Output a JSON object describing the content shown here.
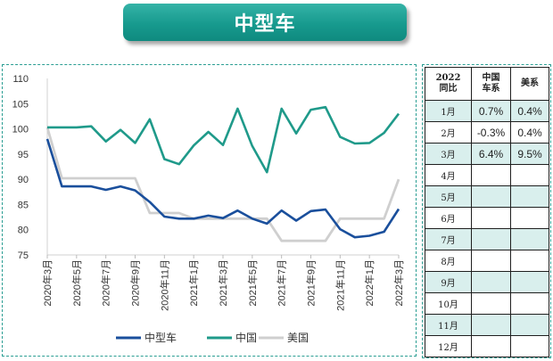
{
  "title": "中型车",
  "chart_data": {
    "type": "line",
    "ylim": [
      75,
      110
    ],
    "yticks": [
      75,
      80,
      85,
      90,
      95,
      100,
      105,
      110
    ],
    "x_tick_labels": [
      "2020年3月",
      "2020年5月",
      "2020年7月",
      "2020年9月",
      "2020年11月",
      "2021年1月",
      "2021年3月",
      "2021年5月",
      "2021年7月",
      "2021年9月",
      "2021年11月",
      "2022年1月",
      "2022年3月"
    ],
    "categories": [
      "2020-03",
      "2020-04",
      "2020-05",
      "2020-06",
      "2020-07",
      "2020-08",
      "2020-09",
      "2020-10",
      "2020-11",
      "2020-12",
      "2021-01",
      "2021-02",
      "2021-03",
      "2021-04",
      "2021-05",
      "2021-06",
      "2021-07",
      "2021-08",
      "2021-09",
      "2021-10",
      "2021-11",
      "2021-12",
      "2022-01",
      "2022-02",
      "2022-03"
    ],
    "series": [
      {
        "name": "中型车",
        "color": "#1a4f9c",
        "values": [
          98,
          88.6,
          88.6,
          88.6,
          87.9,
          88.6,
          87.8,
          85.5,
          82.6,
          82.2,
          82.2,
          82.8,
          82.3,
          83.8,
          82.2,
          81.2,
          83.8,
          81.8,
          83.7,
          84,
          80.1,
          78.5,
          78.8,
          79.6,
          84.1
        ]
      },
      {
        "name": "中国",
        "color": "#1f9a8a",
        "values": [
          100.3,
          100.3,
          100.3,
          100.5,
          97.5,
          99.8,
          97.2,
          101.9,
          94,
          93,
          96.7,
          99.4,
          96.8,
          104,
          96.6,
          91.4,
          104,
          99.1,
          103.8,
          104.3,
          98.4,
          97.1,
          97.2,
          99.2,
          103
        ]
      },
      {
        "name": "美国",
        "color": "#cfcfcf",
        "values": [
          100.3,
          90.2,
          90.2,
          90.2,
          90.2,
          90.2,
          90.2,
          83.3,
          83.3,
          83.3,
          82.2,
          82.2,
          82.2,
          82.2,
          82.2,
          82.2,
          77.8,
          77.8,
          77.8,
          77.8,
          82.2,
          82.2,
          82.2,
          82.2,
          90
        ]
      }
    ]
  },
  "table": {
    "headers": [
      "2022\n同比",
      "中国\n车系",
      "美系"
    ],
    "rows": [
      {
        "month": "1月",
        "cn": "0.7%",
        "us": "0.4%"
      },
      {
        "month": "2月",
        "cn": "-0.3%",
        "us": "0.4%"
      },
      {
        "month": "3月",
        "cn": "6.4%",
        "us": "9.5%"
      },
      {
        "month": "4月",
        "cn": "",
        "us": ""
      },
      {
        "month": "5月",
        "cn": "",
        "us": ""
      },
      {
        "month": "6月",
        "cn": "",
        "us": ""
      },
      {
        "month": "7月",
        "cn": "",
        "us": ""
      },
      {
        "month": "8月",
        "cn": "",
        "us": ""
      },
      {
        "month": "9月",
        "cn": "",
        "us": ""
      },
      {
        "month": "10月",
        "cn": "",
        "us": ""
      },
      {
        "month": "11月",
        "cn": "",
        "us": ""
      },
      {
        "month": "12月",
        "cn": "",
        "us": ""
      }
    ]
  }
}
